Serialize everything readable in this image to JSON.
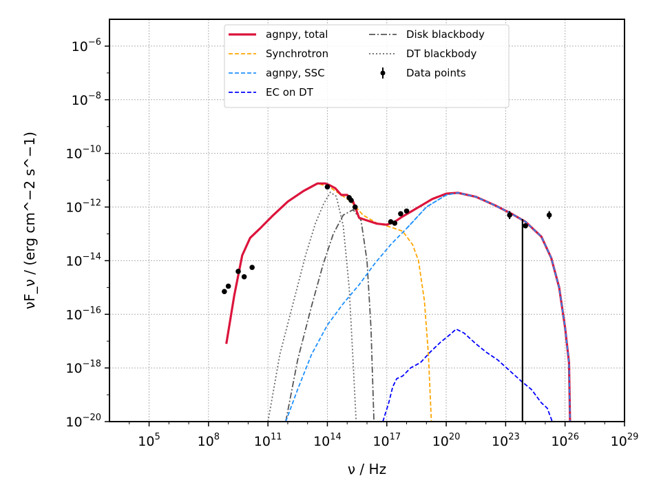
{
  "chart_data": {
    "type": "line",
    "xlabel": "ν / Hz",
    "ylabel": "νF_ν / (erg cm^−2 s^−1)",
    "x_scale": "log",
    "y_scale": "log",
    "xlim_log10": [
      3,
      29
    ],
    "ylim_log10": [
      -20,
      -5
    ],
    "grid": true,
    "legend_position": "top-center",
    "x_tick_labels": [
      {
        "exp": 5,
        "base": "10",
        "power": "5"
      },
      {
        "exp": 8,
        "base": "10",
        "power": "8"
      },
      {
        "exp": 11,
        "base": "10",
        "power": "11"
      },
      {
        "exp": 14,
        "base": "10",
        "power": "14"
      },
      {
        "exp": 17,
        "base": "10",
        "power": "17"
      },
      {
        "exp": 20,
        "base": "10",
        "power": "20"
      },
      {
        "exp": 23,
        "base": "10",
        "power": "23"
      },
      {
        "exp": 26,
        "base": "10",
        "power": "26"
      },
      {
        "exp": 29,
        "base": "10",
        "power": "29"
      }
    ],
    "y_tick_labels": [
      {
        "exp": -6,
        "base": "10",
        "power": "−6"
      },
      {
        "exp": -8,
        "base": "10",
        "power": "−8"
      },
      {
        "exp": -10,
        "base": "10",
        "power": "−10"
      },
      {
        "exp": -12,
        "base": "10",
        "power": "−12"
      },
      {
        "exp": -14,
        "base": "10",
        "power": "−14"
      },
      {
        "exp": -16,
        "base": "10",
        "power": "−16"
      },
      {
        "exp": -18,
        "base": "10",
        "power": "−18"
      },
      {
        "exp": -20,
        "base": "10",
        "power": "−20"
      }
    ],
    "series": [
      {
        "name": "agnpy, total",
        "color": "#dc143c",
        "style": "solid",
        "log_points": [
          [
            8.9,
            -17.1
          ],
          [
            9.3,
            -15.3
          ],
          [
            9.7,
            -13.8
          ],
          [
            10.1,
            -13.15
          ],
          [
            10.6,
            -12.8
          ],
          [
            11.2,
            -12.35
          ],
          [
            12,
            -11.8
          ],
          [
            12.8,
            -11.4
          ],
          [
            13.5,
            -11.12
          ],
          [
            13.9,
            -11.12
          ],
          [
            14.1,
            -11.18
          ],
          [
            14.4,
            -11.3
          ],
          [
            14.7,
            -11.55
          ],
          [
            15,
            -11.55
          ],
          [
            15.3,
            -11.8
          ],
          [
            15.6,
            -12.4
          ],
          [
            16,
            -12.5
          ],
          [
            16.5,
            -12.62
          ],
          [
            17,
            -12.66
          ],
          [
            17.4,
            -12.55
          ],
          [
            17.8,
            -12.35
          ],
          [
            18.5,
            -12.05
          ],
          [
            19.3,
            -11.7
          ],
          [
            20,
            -11.5
          ],
          [
            20.6,
            -11.47
          ],
          [
            21.5,
            -11.62
          ],
          [
            22.5,
            -11.95
          ],
          [
            23.3,
            -12.25
          ],
          [
            24,
            -12.55
          ],
          [
            24.8,
            -13.1
          ],
          [
            25.3,
            -13.9
          ],
          [
            25.7,
            -15
          ],
          [
            26,
            -16.5
          ],
          [
            26.2,
            -17.8
          ],
          [
            26.25,
            -20
          ]
        ]
      },
      {
        "name": "Synchrotron",
        "color": "#ffa500",
        "style": "dashed",
        "log_points": [
          [
            8.9,
            -17.1
          ],
          [
            9.3,
            -15.3
          ],
          [
            9.7,
            -13.8
          ],
          [
            10.1,
            -13.15
          ],
          [
            10.6,
            -12.8
          ],
          [
            11.2,
            -12.35
          ],
          [
            12,
            -11.8
          ],
          [
            12.8,
            -11.4
          ],
          [
            13.5,
            -11.12
          ],
          [
            14.1,
            -11.25
          ],
          [
            14.6,
            -11.5
          ],
          [
            15.2,
            -11.8
          ],
          [
            15.8,
            -12.3
          ],
          [
            16.5,
            -12.6
          ],
          [
            17.2,
            -12.75
          ],
          [
            17.8,
            -12.9
          ],
          [
            18.3,
            -13.4
          ],
          [
            18.6,
            -14
          ],
          [
            18.9,
            -15.5
          ],
          [
            19.1,
            -17.5
          ],
          [
            19.25,
            -20
          ]
        ]
      },
      {
        "name": "agnpy, SSC",
        "color": "#1e90ff",
        "style": "dashed",
        "log_points": [
          [
            11.9,
            -20
          ],
          [
            12.5,
            -18.8
          ],
          [
            13.2,
            -17.5
          ],
          [
            14,
            -16.4
          ],
          [
            14.8,
            -15.6
          ],
          [
            15.6,
            -14.9
          ],
          [
            16.4,
            -14.1
          ],
          [
            17.2,
            -13.4
          ],
          [
            18,
            -12.8
          ],
          [
            19,
            -12
          ],
          [
            20,
            -11.55
          ],
          [
            20.6,
            -11.47
          ],
          [
            21.5,
            -11.62
          ],
          [
            22.5,
            -11.95
          ],
          [
            23.3,
            -12.25
          ],
          [
            24,
            -12.55
          ],
          [
            24.8,
            -13.1
          ],
          [
            25.3,
            -13.9
          ],
          [
            25.7,
            -15
          ],
          [
            26,
            -16.5
          ],
          [
            26.2,
            -17.8
          ],
          [
            26.25,
            -20
          ]
        ]
      },
      {
        "name": "EC on DT",
        "color": "#0000ff",
        "style": "dashed",
        "log_points": [
          [
            16.8,
            -20
          ],
          [
            17.1,
            -19.3
          ],
          [
            17.3,
            -18.7
          ],
          [
            17.5,
            -18.4
          ],
          [
            17.8,
            -18.3
          ],
          [
            18.2,
            -18
          ],
          [
            18.7,
            -17.8
          ],
          [
            19.2,
            -17.4
          ],
          [
            19.7,
            -17.05
          ],
          [
            20.2,
            -16.75
          ],
          [
            20.5,
            -16.55
          ],
          [
            20.9,
            -16.7
          ],
          [
            21.5,
            -17.1
          ],
          [
            22,
            -17.4
          ],
          [
            22.6,
            -17.7
          ],
          [
            23.2,
            -18.1
          ],
          [
            23.8,
            -18.5
          ],
          [
            24.3,
            -18.8
          ],
          [
            24.8,
            -19.3
          ],
          [
            25.1,
            -19.5
          ],
          [
            25.3,
            -19.9
          ],
          [
            25.35,
            -20
          ]
        ]
      },
      {
        "name": "Disk blackbody",
        "color": "#555555",
        "style": "dashdot",
        "log_points": [
          [
            11.9,
            -20
          ],
          [
            12.5,
            -17.7
          ],
          [
            13.2,
            -15.7
          ],
          [
            13.8,
            -14.1
          ],
          [
            14.3,
            -13
          ],
          [
            14.8,
            -12.3
          ],
          [
            15.3,
            -12.1
          ],
          [
            15.7,
            -12.5
          ],
          [
            16,
            -14
          ],
          [
            16.2,
            -16.5
          ],
          [
            16.35,
            -20
          ]
        ]
      },
      {
        "name": "DT blackbody",
        "color": "#666666",
        "style": "dotted",
        "log_points": [
          [
            11,
            -20
          ],
          [
            11.6,
            -17.5
          ],
          [
            12.3,
            -15.5
          ],
          [
            12.9,
            -13.8
          ],
          [
            13.4,
            -12.6
          ],
          [
            13.8,
            -11.9
          ],
          [
            14.15,
            -11.45
          ],
          [
            14.45,
            -11.6
          ],
          [
            14.8,
            -12.7
          ],
          [
            15.1,
            -15
          ],
          [
            15.3,
            -17.8
          ],
          [
            15.45,
            -20
          ]
        ]
      }
    ],
    "data_points": {
      "name": "Data points",
      "color": "#000000",
      "log_points": [
        [
          8.8,
          -15.15
        ],
        [
          9,
          -14.95
        ],
        [
          9.5,
          -14.4
        ],
        [
          9.8,
          -14.6
        ],
        [
          10.2,
          -14.25
        ],
        [
          14,
          -11.25
        ],
        [
          15.1,
          -11.65
        ],
        [
          15.2,
          -11.75
        ],
        [
          15.4,
          -12
        ],
        [
          17.2,
          -12.55
        ],
        [
          17.4,
          -12.6
        ],
        [
          17.7,
          -12.25
        ],
        [
          18,
          -12.15
        ],
        [
          23.2,
          -12.3
        ],
        [
          24,
          -12.7
        ],
        [
          25.2,
          -12.3
        ]
      ],
      "errors_log": [
        0,
        0,
        0,
        0,
        0,
        0,
        0,
        0,
        0,
        0,
        0,
        0,
        0,
        0.15,
        0,
        0.15
      ],
      "upper_bar": {
        "x_log": 23.85,
        "y_top_log": -12.45,
        "y_bottom_log": -20
      }
    },
    "legend_items": [
      {
        "label": "agnpy, total",
        "color": "#dc143c",
        "style": "solid",
        "col": 0,
        "row": 0
      },
      {
        "label": "Synchrotron",
        "color": "#ffa500",
        "style": "dashed",
        "col": 0,
        "row": 1
      },
      {
        "label": "agnpy, SSC",
        "color": "#1e90ff",
        "style": "dashed",
        "col": 0,
        "row": 2
      },
      {
        "label": "EC on DT",
        "color": "#0000ff",
        "style": "dashed",
        "col": 0,
        "row": 3
      },
      {
        "label": "Disk blackbody",
        "color": "#555555",
        "style": "dashdot",
        "col": 1,
        "row": 0
      },
      {
        "label": "DT blackbody",
        "color": "#666666",
        "style": "dotted",
        "col": 1,
        "row": 1
      },
      {
        "label": "Data points",
        "color": "#000000",
        "style": "marker",
        "col": 1,
        "row": 2
      }
    ]
  }
}
